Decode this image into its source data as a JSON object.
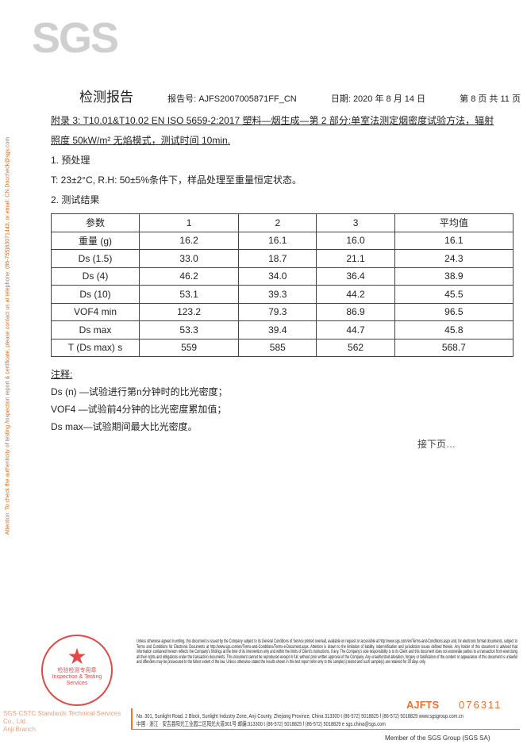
{
  "logo": "SGS",
  "side_notice": "Attention: To check the authenticity of testing /inspection report & certificate, please contact us at telephone: (86-755)83071443, or email: CN.Doccheck@sgs.com",
  "header": {
    "title": "检测报告",
    "report_no": "报告号: AJFS2007005871FF_CN",
    "date": "日期: 2020 年 8 月 14 日",
    "page": "第 8 页 共 11 页"
  },
  "annex": {
    "line1": "附录 3: T10.01&T10.02 EN ISO 5659-2:2017 塑料—烟生成—第 2 部分:单室法测定烟密度试验方法，辐射",
    "line2": "照度 50kW/m² 无焰模式，测试时间 10min."
  },
  "section1": {
    "title": "1.  预处理",
    "text": "T: 23±2°C, R.H: 50±5%条件下，样品处理至重量恒定状态。"
  },
  "section2": {
    "title": "2.  测试结果"
  },
  "table": {
    "headers": [
      "参数",
      "1",
      "2",
      "3",
      "平均值"
    ],
    "rows": [
      [
        "重量 (g)",
        "16.2",
        "16.1",
        "16.0",
        "16.1"
      ],
      [
        "Ds (1.5)",
        "33.0",
        "18.7",
        "21.1",
        "24.3"
      ],
      [
        "Ds (4)",
        "46.2",
        "34.0",
        "36.4",
        "38.9"
      ],
      [
        "Ds (10)",
        "53.1",
        "39.3",
        "44.2",
        "45.5"
      ],
      [
        "VOF4  min",
        "123.2",
        "79.3",
        "86.9",
        "96.5"
      ],
      [
        "Ds max",
        "53.3",
        "39.4",
        "44.7",
        "45.8"
      ],
      [
        "T (Ds max)  s",
        "559",
        "585",
        "562",
        "568.7"
      ]
    ]
  },
  "notes": {
    "title": "注释:",
    "items": [
      "Ds (n) —试验进行第n分钟时的比光密度；",
      "VOF4 —试验前4分钟的比光密度累加值；",
      "Ds max—试验期间最大比光密度。"
    ]
  },
  "next_page": "接下页…",
  "legal": "Unless otherwise agreed in writing, this document is issued by the Company subject to its General Conditions of Service printed overleaf, available on request or accessible at http://www.sgs.com/en/Terms-and-Conditions.aspx and, for electronic format documents, subject to Terms and Conditions for Electronic Documents at http://www.sgs.com/en/Terms-and-Conditions/Terms-e-Document.aspx. Attention is drawn to the limitation of liability, indemnification and jurisdiction issues defined therein. Any holder of this document is advised that information contained hereon reflects the Company's findings at the time of its intervention only and within the limits of Client's instructions, if any. The Company's sole responsibility is to its Client and this document does not exonerate parties to a transaction from exercising all their rights and obligations under the transaction documents. This document cannot be reproduced except in full, without prior written approval of the Company. Any unauthorized alteration, forgery or falsification of the content or appearance of this document is unlawful and offenders may be prosecuted to the fullest extent of the law. Unless otherwise stated the results shown in this test report refer only to the sample(s) tested and such sample(s) are retained for 30 days only.",
  "stamp_code": "AJFTS",
  "stamp_number": "076311",
  "address_en": "No. 301, Sunlight Road, 2 Block, Sunlight Industry Zone, Anji County, Zhejiang Province, China 313300   t (86-572) 5018825  f (86-572) 5018829   www.sgsgroup.com.cn",
  "address_cn": "中国 · 浙江 · 安吉县阳光工业园二区阳光大道301号          邮编:313300   t (86-572) 5018825  f (86-572) 5018829   e sgs.china@sgs.com",
  "company_line1": "SGS-CSTC Standards Technical Services Co., Ltd.",
  "company_line2": "Anji Branch",
  "seal": {
    "text": "检验检测专用章",
    "text_en": "Inspection & Testing Services"
  },
  "member": "Member of the SGS Group (SGS SA)"
}
